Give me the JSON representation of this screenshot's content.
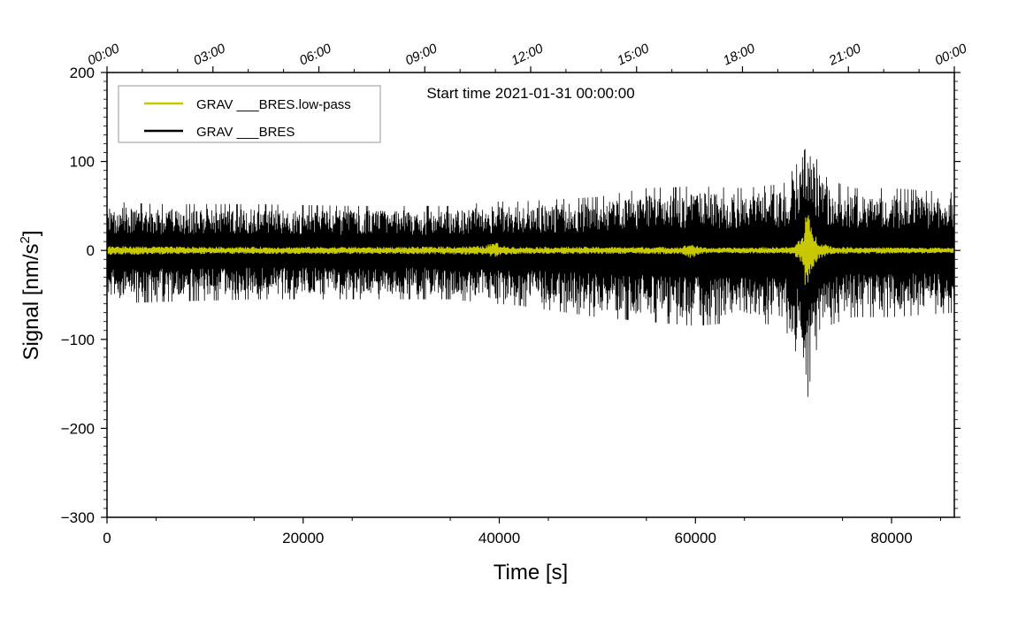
{
  "chart_data": {
    "type": "line",
    "title": "Start time 2021-01-31 00:00:00",
    "xlabel": "Time [s]",
    "ylabel_main": "Signal [nm/s",
    "ylabel_sup": "2",
    "ylabel_tail": "]",
    "xlim": [
      0,
      86400
    ],
    "ylim": [
      -300,
      200
    ],
    "x_ticks": [
      {
        "value": 0,
        "label": "0"
      },
      {
        "value": 20000,
        "label": "20000"
      },
      {
        "value": 40000,
        "label": "40000"
      },
      {
        "value": 60000,
        "label": "60000"
      },
      {
        "value": 80000,
        "label": "80000"
      }
    ],
    "y_ticks": [
      {
        "value": 200,
        "label": "200"
      },
      {
        "value": 100,
        "label": "100"
      },
      {
        "value": 0,
        "label": "0"
      },
      {
        "value": -100,
        "label": "−100"
      },
      {
        "value": -200,
        "label": "−200"
      },
      {
        "value": -300,
        "label": "−300"
      }
    ],
    "top_ticks": [
      {
        "value": 0,
        "label": "00:00"
      },
      {
        "value": 10800,
        "label": "03:00"
      },
      {
        "value": 21600,
        "label": "06:00"
      },
      {
        "value": 32400,
        "label": "09:00"
      },
      {
        "value": 43200,
        "label": "12:00"
      },
      {
        "value": 54000,
        "label": "15:00"
      },
      {
        "value": 64800,
        "label": "18:00"
      },
      {
        "value": 75600,
        "label": "21:00"
      },
      {
        "value": 86400,
        "label": "00:00"
      }
    ],
    "legend_position": "top-left",
    "series": [
      {
        "name": "GRAV ___BRES.low-pass",
        "color": "#c8c800",
        "envelope": {
          "t": [
            0,
            10000,
            30000,
            38500,
            39500,
            40500,
            42000,
            58500,
            59500,
            60500,
            62000,
            70000,
            71000,
            71300,
            71800,
            72500,
            74000,
            86400
          ],
          "upper": [
            5,
            4,
            4,
            5,
            10,
            5,
            4,
            4,
            8,
            4,
            3,
            4,
            20,
            50,
            28,
            12,
            4,
            3
          ],
          "lower": [
            -5,
            -4,
            -4,
            -5,
            -8,
            -5,
            -4,
            -4,
            -9,
            -4,
            -3,
            -4,
            -18,
            -60,
            -25,
            -10,
            -4,
            -3
          ]
        }
      },
      {
        "name": "GRAV ___BRES",
        "color": "#000000",
        "envelope": {
          "t": [
            0,
            5000,
            15000,
            25000,
            35000,
            39500,
            42000,
            50000,
            55000,
            60000,
            65000,
            69000,
            70500,
            71300,
            72000,
            73500,
            76000,
            80000,
            86400
          ],
          "upper": [
            55,
            52,
            52,
            50,
            50,
            55,
            55,
            60,
            70,
            72,
            70,
            75,
            100,
            138,
            110,
            80,
            70,
            70,
            65
          ],
          "lower": [
            -60,
            -58,
            -55,
            -55,
            -55,
            -60,
            -62,
            -75,
            -80,
            -85,
            -80,
            -85,
            -120,
            -180,
            -120,
            -85,
            -75,
            -75,
            -70
          ]
        }
      }
    ]
  }
}
